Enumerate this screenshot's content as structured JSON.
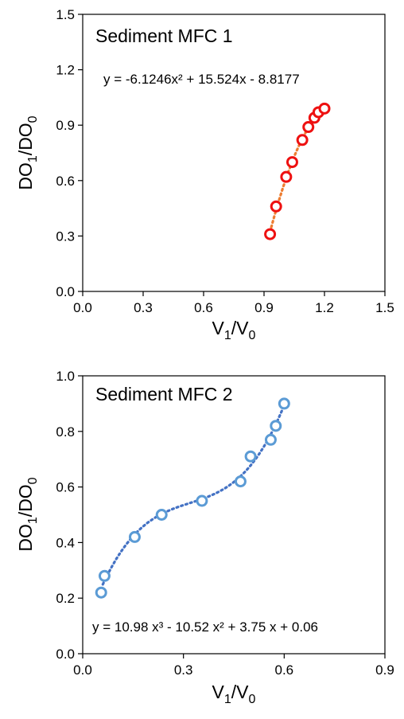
{
  "chart_data": [
    {
      "type": "scatter",
      "title": "Sediment MFC 1",
      "equation": "y = -6.1246x² + 15.524x - 8.8177",
      "xlabel": {
        "main": "V",
        "sub1": "1",
        "mid": "/V",
        "sub2": "0"
      },
      "ylabel": {
        "main": "DO",
        "sub1": "1",
        "mid": "/DO",
        "sub2": "0"
      },
      "xlim": [
        0,
        1.5
      ],
      "ylim": [
        0,
        1.5
      ],
      "xticks": [
        "0.0",
        "0.3",
        "0.6",
        "0.9",
        "1.2",
        "1.5"
      ],
      "yticks": [
        "0.0",
        "0.3",
        "0.6",
        "0.9",
        "1.2",
        "1.5"
      ],
      "marker_color": "#ee1111",
      "trend_color": "#ed7d31",
      "trendline": {
        "type": "poly2",
        "coefficients": [
          -8.8177,
          15.524,
          -6.1246
        ],
        "x_range": [
          0.93,
          1.2
        ]
      },
      "points": [
        {
          "x": 0.93,
          "y": 0.31
        },
        {
          "x": 0.96,
          "y": 0.46
        },
        {
          "x": 1.01,
          "y": 0.62
        },
        {
          "x": 1.04,
          "y": 0.7
        },
        {
          "x": 1.09,
          "y": 0.82
        },
        {
          "x": 1.12,
          "y": 0.89
        },
        {
          "x": 1.15,
          "y": 0.94
        },
        {
          "x": 1.17,
          "y": 0.97
        },
        {
          "x": 1.2,
          "y": 0.99
        }
      ]
    },
    {
      "type": "scatter",
      "title": "Sediment MFC 2",
      "equation": "y = 10.98 x³ - 10.52 x² + 3.75 x + 0.06",
      "xlabel": {
        "main": "V",
        "sub1": "1",
        "mid": "/V",
        "sub2": "0"
      },
      "ylabel": {
        "main": "DO",
        "sub1": "1",
        "mid": "/DO",
        "sub2": "0"
      },
      "xlim": [
        0,
        0.9
      ],
      "ylim": [
        0,
        1.0
      ],
      "xticks": [
        "0.0",
        "0.3",
        "0.6",
        "0.9"
      ],
      "yticks": [
        "0.0",
        "0.2",
        "0.4",
        "0.6",
        "0.8",
        "1.0"
      ],
      "marker_color": "#5b9bd5",
      "trend_color": "#4472c4",
      "trendline": {
        "type": "poly3",
        "coefficients": [
          0.06,
          3.75,
          -10.52,
          10.98
        ],
        "x_range": [
          0.06,
          0.6
        ]
      },
      "points": [
        {
          "x": 0.055,
          "y": 0.22
        },
        {
          "x": 0.065,
          "y": 0.28
        },
        {
          "x": 0.155,
          "y": 0.42
        },
        {
          "x": 0.235,
          "y": 0.5
        },
        {
          "x": 0.355,
          "y": 0.55
        },
        {
          "x": 0.47,
          "y": 0.62
        },
        {
          "x": 0.5,
          "y": 0.71
        },
        {
          "x": 0.56,
          "y": 0.77
        },
        {
          "x": 0.575,
          "y": 0.82
        },
        {
          "x": 0.6,
          "y": 0.9
        }
      ]
    }
  ]
}
